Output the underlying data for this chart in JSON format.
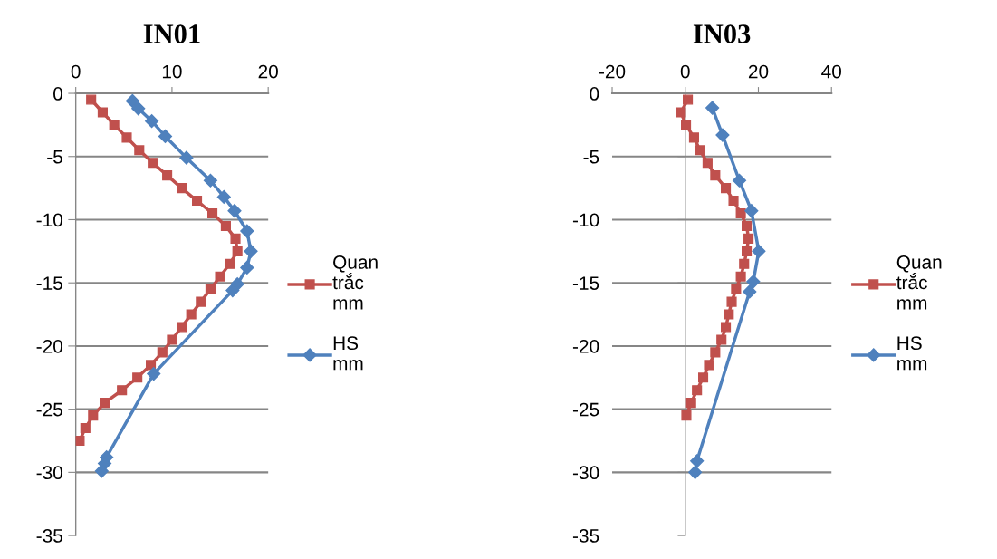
{
  "chart_data": [
    {
      "type": "line",
      "title": "IN01",
      "xlim": [
        0,
        20
      ],
      "xticks": [
        0,
        10,
        20
      ],
      "ylim": [
        -35,
        0
      ],
      "yticks": [
        -35,
        -30,
        -25,
        -20,
        -15,
        -10,
        -5,
        0
      ],
      "grid": "y",
      "legend": "right",
      "series": [
        {
          "name": "Quan trắc mm",
          "color": "#c0504d",
          "marker": "square",
          "line_style": "solid",
          "x": [
            1.6,
            2.8,
            4.0,
            5.3,
            6.6,
            8.0,
            9.5,
            11.0,
            12.6,
            14.2,
            15.6,
            16.6,
            16.8,
            16.0,
            15.0,
            14.0,
            13.0,
            12.0,
            11.0,
            10.0,
            9.0,
            7.8,
            6.4,
            4.8,
            3.0,
            1.8,
            1.0,
            0.4
          ],
          "values": [
            -0.5,
            -1.5,
            -2.5,
            -3.5,
            -4.5,
            -5.5,
            -6.5,
            -7.5,
            -8.5,
            -9.5,
            -10.5,
            -11.5,
            -12.5,
            -13.5,
            -14.5,
            -15.5,
            -16.5,
            -17.5,
            -18.5,
            -19.5,
            -20.5,
            -21.5,
            -22.5,
            -23.5,
            -24.5,
            -25.5,
            -26.5,
            -27.5
          ]
        },
        {
          "name": "HS mm",
          "color": "#4f81bd",
          "marker": "diamond",
          "line_style": "solid",
          "x": [
            5.9,
            6.5,
            7.9,
            9.3,
            11.5,
            14.0,
            15.4,
            16.5,
            17.8,
            18.2,
            17.8,
            16.8,
            16.3,
            8.1,
            3.2,
            3.0,
            2.7
          ],
          "values": [
            -0.6,
            -1.2,
            -2.2,
            -3.4,
            -5.1,
            -6.9,
            -8.2,
            -9.3,
            -10.9,
            -12.5,
            -13.8,
            -15.1,
            -15.6,
            -22.2,
            -28.8,
            -29.3,
            -29.9
          ]
        }
      ]
    },
    {
      "type": "line",
      "title": "IN03",
      "xlim": [
        -20,
        40
      ],
      "xticks": [
        -20,
        0,
        20,
        40
      ],
      "ylim": [
        -35,
        0
      ],
      "yticks": [
        -35,
        -30,
        -25,
        -20,
        -15,
        -10,
        -5,
        0
      ],
      "grid": "y",
      "legend": "right",
      "series": [
        {
          "name": "Quan trắc mm",
          "color": "#c0504d",
          "marker": "square",
          "line_style": "solid",
          "x": [
            0.7,
            -1.2,
            0.2,
            2.4,
            4.0,
            6.1,
            8.2,
            11.1,
            13.2,
            15.2,
            16.8,
            17.3,
            16.8,
            16.1,
            15.2,
            13.9,
            12.7,
            11.9,
            11.1,
            9.9,
            8.2,
            6.5,
            4.9,
            3.2,
            1.6,
            0.3
          ],
          "values": [
            -0.5,
            -1.5,
            -2.5,
            -3.5,
            -4.5,
            -5.5,
            -6.5,
            -7.5,
            -8.5,
            -9.5,
            -10.5,
            -11.5,
            -12.5,
            -13.5,
            -14.5,
            -15.5,
            -16.5,
            -17.5,
            -18.5,
            -19.5,
            -20.5,
            -21.5,
            -22.5,
            -23.5,
            -24.5,
            -25.5
          ]
        },
        {
          "name": "HS mm",
          "color": "#4f81bd",
          "marker": "diamond",
          "line_style": "solid",
          "x": [
            7.4,
            10.2,
            14.8,
            18.1,
            20.1,
            18.6,
            17.6,
            3.2,
            2.7
          ],
          "values": [
            -1.15,
            -3.3,
            -6.9,
            -9.3,
            -12.5,
            -14.9,
            -15.7,
            -29.1,
            -30.0
          ]
        }
      ]
    }
  ]
}
